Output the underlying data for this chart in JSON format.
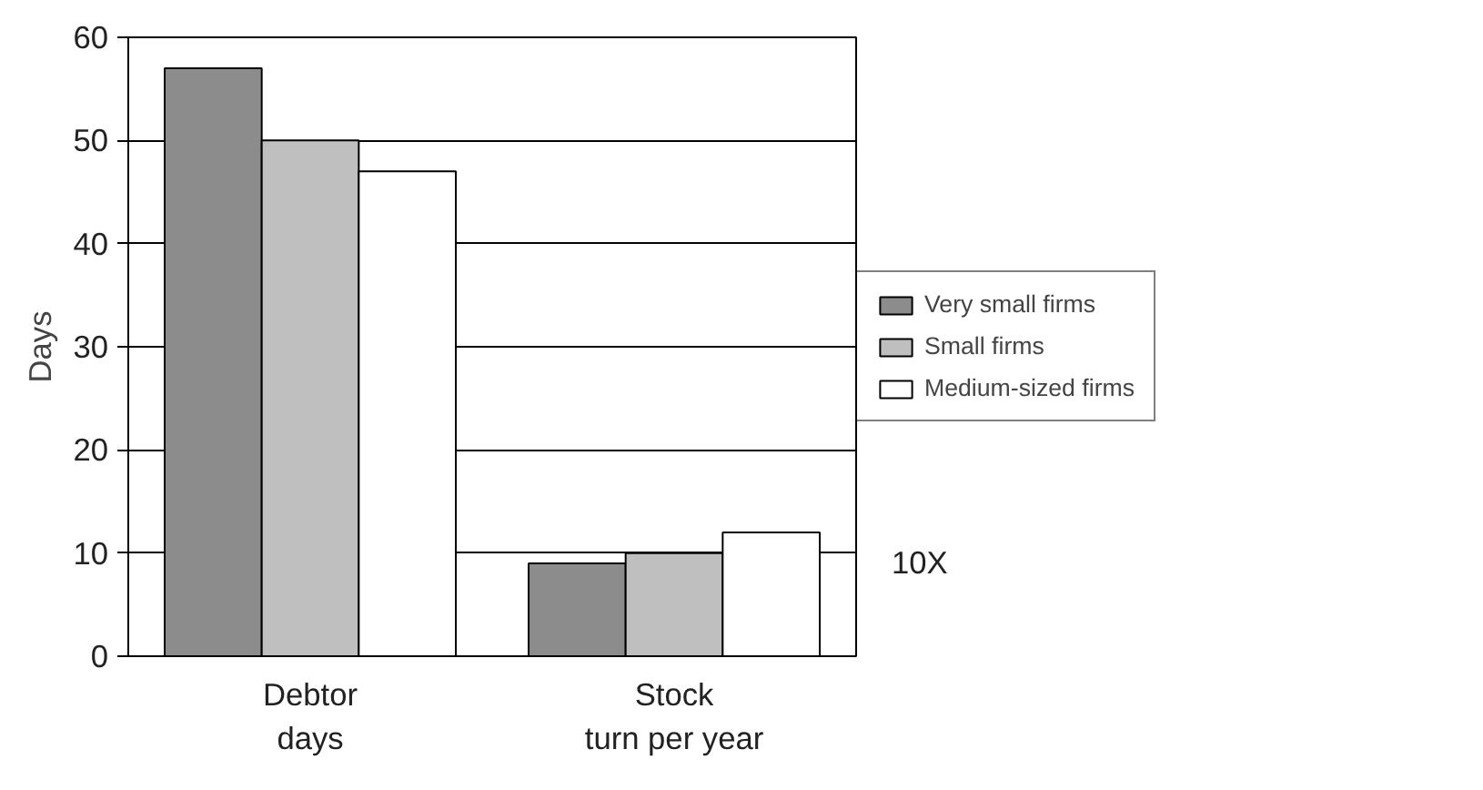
{
  "chart_data": {
    "type": "bar",
    "ylabel": "Days",
    "categories": [
      "Debtor\ndays",
      "Stock\nturn per year"
    ],
    "series": [
      {
        "name": "Very small firms",
        "color": "#8c8c8c",
        "values": [
          57,
          9
        ]
      },
      {
        "name": "Small firms",
        "color": "#bfbfbf",
        "values": [
          50,
          10
        ]
      },
      {
        "name": "Medium-sized firms",
        "color": "#ffffff",
        "values": [
          47,
          12
        ]
      }
    ],
    "ylim": [
      0,
      60
    ],
    "yticks": [
      0,
      10,
      20,
      30,
      40,
      50,
      60
    ],
    "grid": "y",
    "legend": "right",
    "annotations": [
      "10X"
    ]
  }
}
